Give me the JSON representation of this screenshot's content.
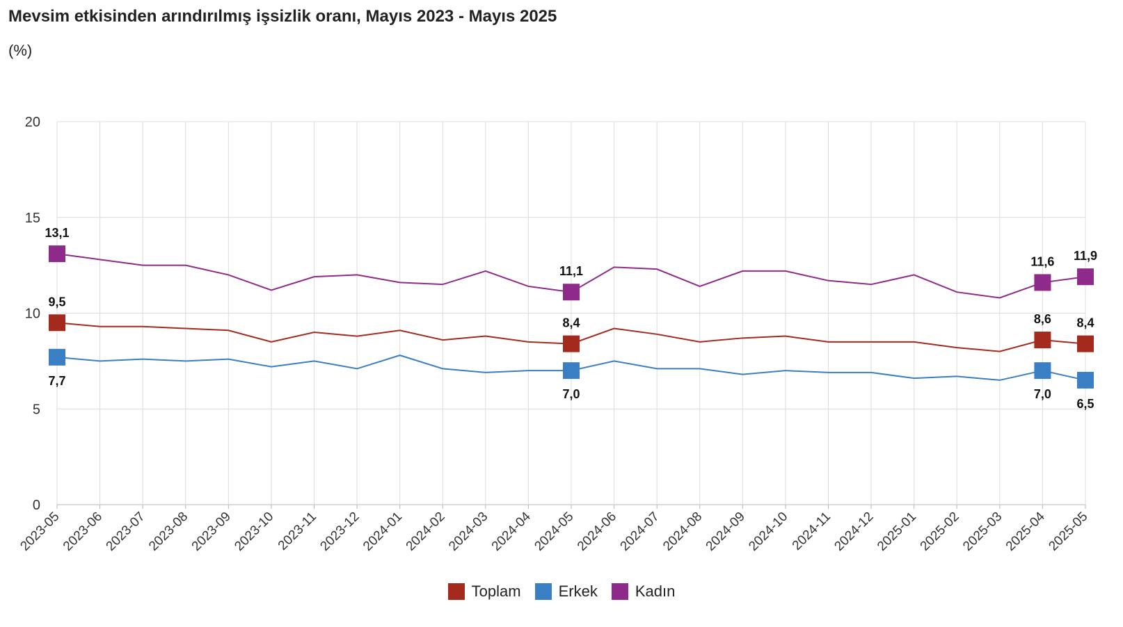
{
  "chart_data": {
    "type": "line",
    "title": "Mevsim etkisinden arındırılmış işsizlik oranı, Mayıs 2023 - Mayıs 2025",
    "subtitle": "(%)",
    "x": [
      "2023-05",
      "2023-06",
      "2023-07",
      "2023-08",
      "2023-09",
      "2023-10",
      "2023-11",
      "2023-12",
      "2024-01",
      "2024-02",
      "2024-03",
      "2024-04",
      "2024-05",
      "2024-06",
      "2024-07",
      "2024-08",
      "2024-09",
      "2024-10",
      "2024-11",
      "2024-12",
      "2025-01",
      "2025-02",
      "2025-03",
      "2025-04",
      "2025-05"
    ],
    "ylim": [
      0,
      20
    ],
    "yticks": [
      0,
      5,
      10,
      15,
      20
    ],
    "grid": true,
    "legend_position": "bottom",
    "series": [
      {
        "name": "Toplam",
        "color": "#a52a1e",
        "values": [
          9.5,
          9.3,
          9.3,
          9.2,
          9.1,
          8.5,
          9.0,
          8.8,
          9.1,
          8.6,
          8.8,
          8.5,
          8.4,
          9.2,
          8.9,
          8.5,
          8.7,
          8.8,
          8.5,
          8.5,
          8.5,
          8.2,
          8.0,
          8.6,
          8.4
        ],
        "labels": [
          "9,5",
          null,
          null,
          null,
          null,
          null,
          null,
          null,
          null,
          null,
          null,
          null,
          "8,4",
          null,
          null,
          null,
          null,
          null,
          null,
          null,
          null,
          null,
          null,
          "8,6",
          "8,4"
        ]
      },
      {
        "name": "Erkek",
        "color": "#3a7ec4",
        "values": [
          7.7,
          7.5,
          7.6,
          7.5,
          7.6,
          7.2,
          7.5,
          7.1,
          7.8,
          7.1,
          6.9,
          7.0,
          7.0,
          7.5,
          7.1,
          7.1,
          6.8,
          7.0,
          6.9,
          6.9,
          6.6,
          6.7,
          6.5,
          7.0,
          6.5
        ],
        "labels": [
          "7,7",
          null,
          null,
          null,
          null,
          null,
          null,
          null,
          null,
          null,
          null,
          null,
          "7,0",
          null,
          null,
          null,
          null,
          null,
          null,
          null,
          null,
          null,
          null,
          "7,0",
          "6,5"
        ]
      },
      {
        "name": "Kadın",
        "color": "#8e2a8a",
        "values": [
          13.1,
          12.8,
          12.5,
          12.5,
          12.0,
          11.2,
          11.9,
          12.0,
          11.6,
          11.5,
          12.2,
          11.4,
          11.1,
          12.4,
          12.3,
          11.4,
          12.2,
          12.2,
          11.7,
          11.5,
          12.0,
          11.1,
          10.8,
          11.6,
          11.9
        ],
        "labels": [
          "13,1",
          null,
          null,
          null,
          null,
          null,
          null,
          null,
          null,
          null,
          null,
          null,
          "11,1",
          null,
          null,
          null,
          null,
          null,
          null,
          null,
          null,
          null,
          null,
          "11,6",
          "11,9"
        ]
      }
    ]
  }
}
